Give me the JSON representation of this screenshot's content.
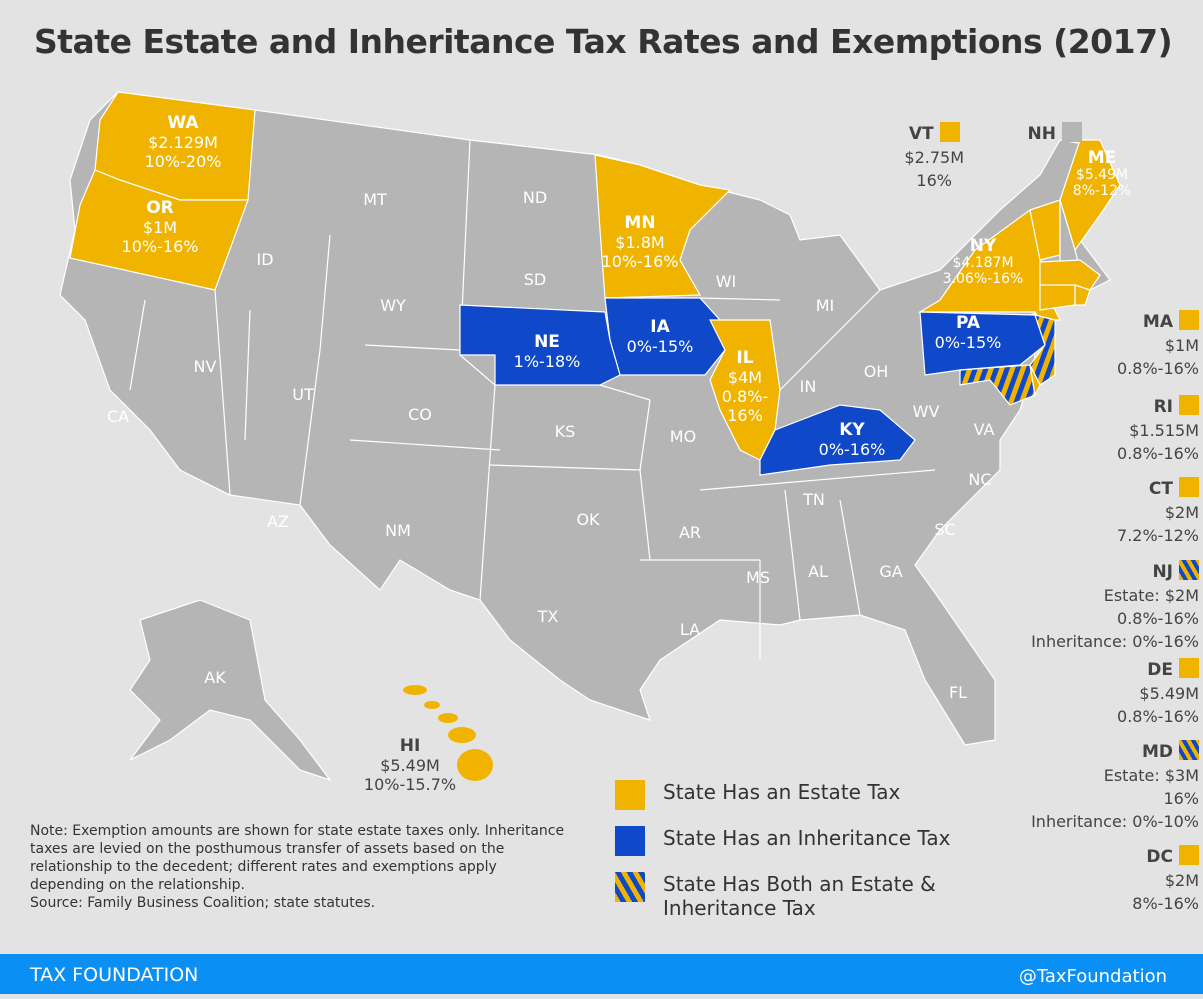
{
  "title": "State Estate and Inheritance Tax Rates and Exemptions (2017)",
  "colors": {
    "estate": "#f0b400",
    "inheritance": "#0f48c8",
    "none": "#b5b5b5",
    "footer": "#0a8ff5"
  },
  "map_states": [
    {
      "abbr": "WA",
      "type": "estate",
      "lines": [
        "$2.129M",
        "10%-20%"
      ]
    },
    {
      "abbr": "OR",
      "type": "estate",
      "lines": [
        "$1M",
        "10%-16%"
      ]
    },
    {
      "abbr": "MN",
      "type": "estate",
      "lines": [
        "$1.8M",
        "10%-16%"
      ]
    },
    {
      "abbr": "NE",
      "type": "inheritance",
      "lines": [
        "1%-18%"
      ]
    },
    {
      "abbr": "IA",
      "type": "inheritance",
      "lines": [
        "0%-15%"
      ]
    },
    {
      "abbr": "IL",
      "type": "estate",
      "lines": [
        "$4M",
        "0.8%-",
        "16%"
      ]
    },
    {
      "abbr": "KY",
      "type": "inheritance",
      "lines": [
        "0%-16%"
      ]
    },
    {
      "abbr": "PA",
      "type": "inheritance",
      "lines": [
        "0%-15%"
      ]
    },
    {
      "abbr": "NY",
      "type": "estate",
      "lines": [
        "$4.187M",
        "3.06%-16%"
      ]
    },
    {
      "abbr": "ME",
      "type": "estate",
      "lines": [
        "$5.49M",
        "8%-12%"
      ]
    }
  ],
  "gray_states": [
    "MT",
    "ND",
    "ID",
    "SD",
    "WY",
    "WI",
    "MI",
    "NV",
    "UT",
    "CO",
    "CA",
    "KS",
    "MO",
    "IN",
    "OH",
    "WV",
    "VA",
    "AZ",
    "NM",
    "OK",
    "AR",
    "TN",
    "NC",
    "SC",
    "MS",
    "AL",
    "GA",
    "TX",
    "LA",
    "FL",
    "AK"
  ],
  "hawaii": {
    "abbr": "HI",
    "lines": [
      "$5.49M",
      "10%-15.7%"
    ]
  },
  "side": [
    {
      "abbr": "VT",
      "type": "estate",
      "lines": [
        "$2.75M",
        "16%"
      ]
    },
    {
      "abbr": "NH",
      "type": "none",
      "lines": []
    },
    {
      "abbr": "MA",
      "type": "estate",
      "lines": [
        "$1M",
        "0.8%-16%"
      ]
    },
    {
      "abbr": "RI",
      "type": "estate",
      "lines": [
        "$1.515M",
        "0.8%-16%"
      ]
    },
    {
      "abbr": "CT",
      "type": "estate",
      "lines": [
        "$2M",
        "7.2%-12%"
      ]
    },
    {
      "abbr": "NJ",
      "type": "both",
      "lines": [
        "Estate: $2M",
        "0.8%-16%",
        "Inheritance: 0%-16%"
      ]
    },
    {
      "abbr": "DE",
      "type": "estate",
      "lines": [
        "$5.49M",
        "0.8%-16%"
      ]
    },
    {
      "abbr": "MD",
      "type": "both",
      "lines": [
        "Estate: $3M",
        "16%",
        "Inheritance: 0%-10%"
      ]
    },
    {
      "abbr": "DC",
      "type": "estate",
      "lines": [
        "$2M",
        "8%-16%"
      ]
    }
  ],
  "legend": [
    {
      "type": "estate",
      "label": "State Has an Estate Tax"
    },
    {
      "type": "inheritance",
      "label": "State Has an Inheritance Tax"
    },
    {
      "type": "both",
      "label": "State Has Both an Estate & Inheritance Tax"
    }
  ],
  "note": "Note: Exemption amounts are shown for state estate taxes only. Inheritance taxes are levied on the posthumous transfer of assets based on the relationship to the decedent; different rates and exemptions apply depending on the relationship.",
  "source": "Source: Family Business Coalition; state statutes.",
  "footer": {
    "left": "TAX FOUNDATION",
    "right": "@TaxFoundation"
  }
}
